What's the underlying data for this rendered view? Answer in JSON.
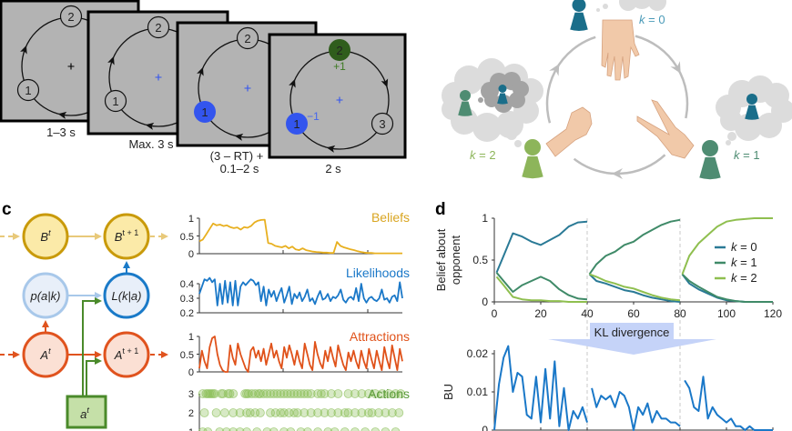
{
  "panel_labels": {
    "c": "c",
    "d": "d"
  },
  "panel_a": {
    "timings": [
      "1–3 s",
      "Max. 3 s",
      "(3 – RT) +",
      "0.1–2 s",
      "2 s"
    ],
    "node_labels": [
      "1",
      "2",
      "3"
    ],
    "feedback": {
      "win": "+1",
      "loss": "−1"
    },
    "colors": {
      "screen": "#b3b3b3",
      "choice": "#3355ee",
      "win": "#2f5d1c",
      "cross_initial": "#000000",
      "cross": "#3355ee"
    },
    "screens": [
      {
        "nodes": [
          {
            "label": "1",
            "state": "plain"
          },
          {
            "label": "2",
            "state": "plain"
          }
        ],
        "cross": "initial"
      },
      {
        "nodes": [
          {
            "label": "1",
            "state": "plain"
          },
          {
            "label": "2",
            "state": "plain"
          }
        ],
        "cross": "blue"
      },
      {
        "nodes": [
          {
            "label": "1",
            "state": "chosen"
          },
          {
            "label": "2",
            "state": "plain"
          }
        ],
        "cross": "blue"
      },
      {
        "nodes": [
          {
            "label": "1",
            "state": "chosen"
          },
          {
            "label": "2",
            "state": "win"
          },
          {
            "label": "3",
            "state": "plain"
          }
        ],
        "cross": "blue",
        "feedback": true
      }
    ]
  },
  "panel_b": {
    "k0": {
      "var": "k",
      "value": " = 0",
      "color": "#4a9ab8"
    },
    "k1": {
      "var": "k",
      "value": " = 1",
      "color": "#4e8c72"
    },
    "k2": {
      "var": "k",
      "value": " = 2",
      "color": "#8db55a"
    },
    "hands": [
      "paper",
      "scissors",
      "rock"
    ]
  },
  "panel_c": {
    "nodes": {
      "B_t": {
        "sym": "B",
        "sup": "t"
      },
      "B_t1": {
        "sym": "B",
        "sup": "t + 1"
      },
      "p": {
        "text": "p(a|k)"
      },
      "L": {
        "text": "L(k|a)"
      },
      "A_t": {
        "sym": "A",
        "sup": "t"
      },
      "A_t1": {
        "sym": "A",
        "sup": "t + 1"
      },
      "a_t": {
        "sym": "a",
        "sup": "t"
      }
    },
    "colors": {
      "beliefs": "#e8b020",
      "likelihoods": "#1a78c8",
      "attractions": "#e0521a",
      "actions": "#8bbf5a"
    },
    "charts": {
      "beliefs": {
        "label": "Beliefs",
        "yticks": [
          "1",
          "0.5",
          "0"
        ],
        "ylim": [
          0,
          1
        ],
        "values": [
          0.35,
          0.4,
          0.55,
          0.7,
          0.85,
          0.8,
          0.82,
          0.78,
          0.8,
          0.75,
          0.72,
          0.74,
          0.68,
          0.75,
          0.73,
          0.78,
          0.88,
          0.93,
          0.95,
          0.96,
          0.3,
          0.28,
          0.22,
          0.2,
          0.18,
          0.22,
          0.15,
          0.2,
          0.12,
          0.1,
          0.15,
          0.1,
          0.08,
          0.06,
          0.05,
          0.04,
          0.03,
          0.03,
          0.02,
          0.02,
          0.33,
          0.22,
          0.18,
          0.15,
          0.12,
          0.1,
          0.07,
          0.05,
          0.03,
          0.02,
          0.02,
          0.01,
          0.01,
          0.01,
          0.01,
          0.01,
          0.01,
          0.01,
          0.01,
          0.01
        ]
      },
      "likelihoods": {
        "label": "Likelihoods",
        "yticks": [
          "0.4",
          "0.3",
          "0.2"
        ],
        "ylim": [
          0.2,
          0.4
        ],
        "values": [
          0.33,
          0.38,
          0.43,
          0.42,
          0.44,
          0.41,
          0.43,
          0.25,
          0.4,
          0.26,
          0.42,
          0.27,
          0.41,
          0.25,
          0.42,
          0.25,
          0.38,
          0.41,
          0.39,
          0.41,
          0.43,
          0.42,
          0.39,
          0.41,
          0.28,
          0.38,
          0.25,
          0.36,
          0.31,
          0.35,
          0.28,
          0.33,
          0.37,
          0.27,
          0.32,
          0.38,
          0.26,
          0.33,
          0.3,
          0.34,
          0.28,
          0.31,
          0.36,
          0.28,
          0.3,
          0.26,
          0.31,
          0.35,
          0.29,
          0.3,
          0.33,
          0.28,
          0.31,
          0.3,
          0.32,
          0.36,
          0.29,
          0.27,
          0.3,
          0.31,
          0.29,
          0.37,
          0.28,
          0.4,
          0.3,
          0.27,
          0.3,
          0.31,
          0.29,
          0.28,
          0.3,
          0.36,
          0.29,
          0.3,
          0.27,
          0.31,
          0.32,
          0.28,
          0.41,
          0.3
        ]
      },
      "attractions": {
        "label": "Attractions",
        "yticks": [
          "1",
          "0.5",
          "0"
        ],
        "ylim": [
          0,
          1
        ],
        "values": [
          0.1,
          0.6,
          0.3,
          0.1,
          0.7,
          0.95,
          1.0,
          0.5,
          0.2,
          0.05,
          0,
          0,
          0.75,
          0.4,
          0.2,
          0.8,
          0.5,
          0.3,
          0.1,
          0,
          0.6,
          0.7,
          0.4,
          0.6,
          0.3,
          0.65,
          0.2,
          0.5,
          0.8,
          0.4,
          0.6,
          0.3,
          0.1,
          0.7,
          0.4,
          0.75,
          0.5,
          0.2,
          0.6,
          0.3,
          0.1,
          0.8,
          0.5,
          0.2,
          0.05,
          0.85,
          0.5,
          0.25,
          0.1,
          0.6,
          0.3,
          0.7,
          0.4,
          0.15,
          0.75,
          0.45,
          0.2,
          0.05,
          0.55,
          0.3,
          0.6,
          0.3,
          0.1,
          0.6,
          0.3,
          0.1,
          0.65,
          0.35,
          0.1,
          0.6,
          0.3,
          0.05,
          0.7,
          0.35,
          0.1,
          0.75,
          0.4,
          0.05,
          0.65,
          0.3
        ]
      },
      "actions": {
        "label": "Actions",
        "yticks": [
          "3",
          "2",
          "1"
        ],
        "trials": {
          "3": [
            2,
            4,
            5,
            6,
            7,
            8,
            9,
            13,
            14,
            17,
            18,
            20,
            27,
            28,
            29,
            31,
            33,
            35,
            36,
            38,
            40,
            42,
            44,
            46,
            48,
            50,
            52,
            54,
            56,
            58,
            60,
            62,
            64,
            66,
            70,
            72,
            74,
            78,
            82,
            88,
            92,
            96,
            100,
            104,
            108,
            112,
            116,
            119
          ],
          "2": [
            3,
            10,
            15,
            20,
            24,
            28,
            30,
            33,
            36,
            42,
            45,
            48,
            50,
            53,
            56,
            58,
            62,
            66,
            70,
            74,
            78,
            82,
            86,
            88,
            92,
            96,
            100,
            102,
            106,
            110,
            114,
            118
          ],
          "1": [
            2,
            5,
            12,
            16,
            20,
            24,
            28,
            34,
            40,
            44,
            50,
            54,
            60,
            64,
            70,
            76,
            80,
            86,
            92,
            98,
            104,
            110,
            116
          ]
        }
      }
    }
  },
  "panel_d": {
    "chart_data": [
      {
        "type": "line",
        "ylabel": [
          "Belief about",
          "opponent"
        ],
        "xlim": [
          0,
          120
        ],
        "ylim": [
          0,
          1
        ],
        "xticks": [
          "0",
          "20",
          "40",
          "60",
          "80",
          "100",
          "120"
        ],
        "yticks": [
          "0",
          "0.5",
          "1"
        ],
        "legend": "right",
        "x_blocks": [
          [
            1,
            4,
            8,
            12,
            16,
            20,
            24,
            28,
            32,
            36,
            40
          ],
          [
            41,
            44,
            48,
            52,
            56,
            60,
            64,
            68,
            72,
            76,
            80
          ],
          [
            81,
            84,
            88,
            92,
            96,
            100,
            104,
            108,
            112,
            116,
            120
          ]
        ],
        "series": [
          {
            "name": "k = 0",
            "var": "k",
            "value": " = 0",
            "color": "#2a7a96",
            "blocks": [
              [
                0.35,
                0.55,
                0.82,
                0.78,
                0.72,
                0.68,
                0.74,
                0.8,
                0.9,
                0.95,
                0.96
              ],
              [
                0.33,
                0.25,
                0.22,
                0.18,
                0.14,
                0.12,
                0.08,
                0.05,
                0.03,
                0.01,
                0.0
              ],
              [
                0.33,
                0.22,
                0.15,
                0.1,
                0.05,
                0.02,
                0.01,
                0,
                0,
                0,
                0
              ]
            ]
          },
          {
            "name": "k = 1",
            "var": "k",
            "value": " = 1",
            "color": "#3f8a68",
            "blocks": [
              [
                0.35,
                0.25,
                0.12,
                0.2,
                0.25,
                0.3,
                0.25,
                0.15,
                0.08,
                0.04,
                0.03
              ],
              [
                0.33,
                0.45,
                0.55,
                0.6,
                0.68,
                0.72,
                0.8,
                0.86,
                0.92,
                0.96,
                0.98
              ],
              [
                0.33,
                0.25,
                0.18,
                0.12,
                0.06,
                0.03,
                0.01,
                0,
                0,
                0,
                0
              ]
            ]
          },
          {
            "name": "k = 2",
            "var": "k",
            "value": " = 2",
            "color": "#8fbf4f",
            "blocks": [
              [
                0.3,
                0.2,
                0.06,
                0.03,
                0.02,
                0.02,
                0.01,
                0.01,
                0,
                0,
                0
              ],
              [
                0.33,
                0.3,
                0.25,
                0.22,
                0.18,
                0.16,
                0.12,
                0.08,
                0.05,
                0.03,
                0.02
              ],
              [
                0.33,
                0.55,
                0.7,
                0.8,
                0.9,
                0.96,
                0.98,
                0.99,
                1.0,
                1.0,
                1.0
              ]
            ]
          }
        ]
      },
      {
        "type": "line",
        "ylabel": "BU",
        "xlim": [
          0,
          120
        ],
        "ylim": [
          0,
          0.022
        ],
        "yticks": [
          "0",
          "0.01",
          "0.02"
        ],
        "color": "#1a78c8",
        "x_blocks": [
          [
            0,
            2,
            4,
            6,
            8,
            10,
            12,
            14,
            16,
            18,
            20,
            22,
            24,
            26,
            28,
            30,
            32,
            34,
            36,
            38,
            40
          ],
          [
            42,
            44,
            46,
            48,
            50,
            52,
            54,
            56,
            58,
            60,
            62,
            64,
            66,
            68,
            70,
            72,
            74,
            76,
            78,
            80
          ],
          [
            82,
            84,
            86,
            88,
            90,
            92,
            94,
            96,
            98,
            100,
            102,
            104,
            106,
            108,
            110,
            112,
            114,
            116,
            118,
            120
          ]
        ],
        "blocks": [
          [
            0,
            0.012,
            0.019,
            0.022,
            0.01,
            0.015,
            0.014,
            0.004,
            0.003,
            0.014,
            0.002,
            0.016,
            0.003,
            0.018,
            0.001,
            0.011,
            0,
            0.005,
            0.003,
            0.006,
            0.002
          ],
          [
            0.011,
            0.006,
            0.009,
            0.008,
            0.009,
            0.006,
            0.01,
            0.009,
            0.006,
            0,
            0.006,
            0.004,
            0.007,
            0.002,
            0.005,
            0.003,
            0.003,
            0.002,
            0.002,
            0.001
          ],
          [
            0.013,
            0.011,
            0.006,
            0.005,
            0.014,
            0.003,
            0.006,
            0.004,
            0.003,
            0.002,
            0.003,
            0.001,
            0.001,
            0,
            0.001,
            0,
            0,
            0,
            0,
            0
          ]
        ]
      }
    ],
    "kl_label": "KL divergence"
  }
}
